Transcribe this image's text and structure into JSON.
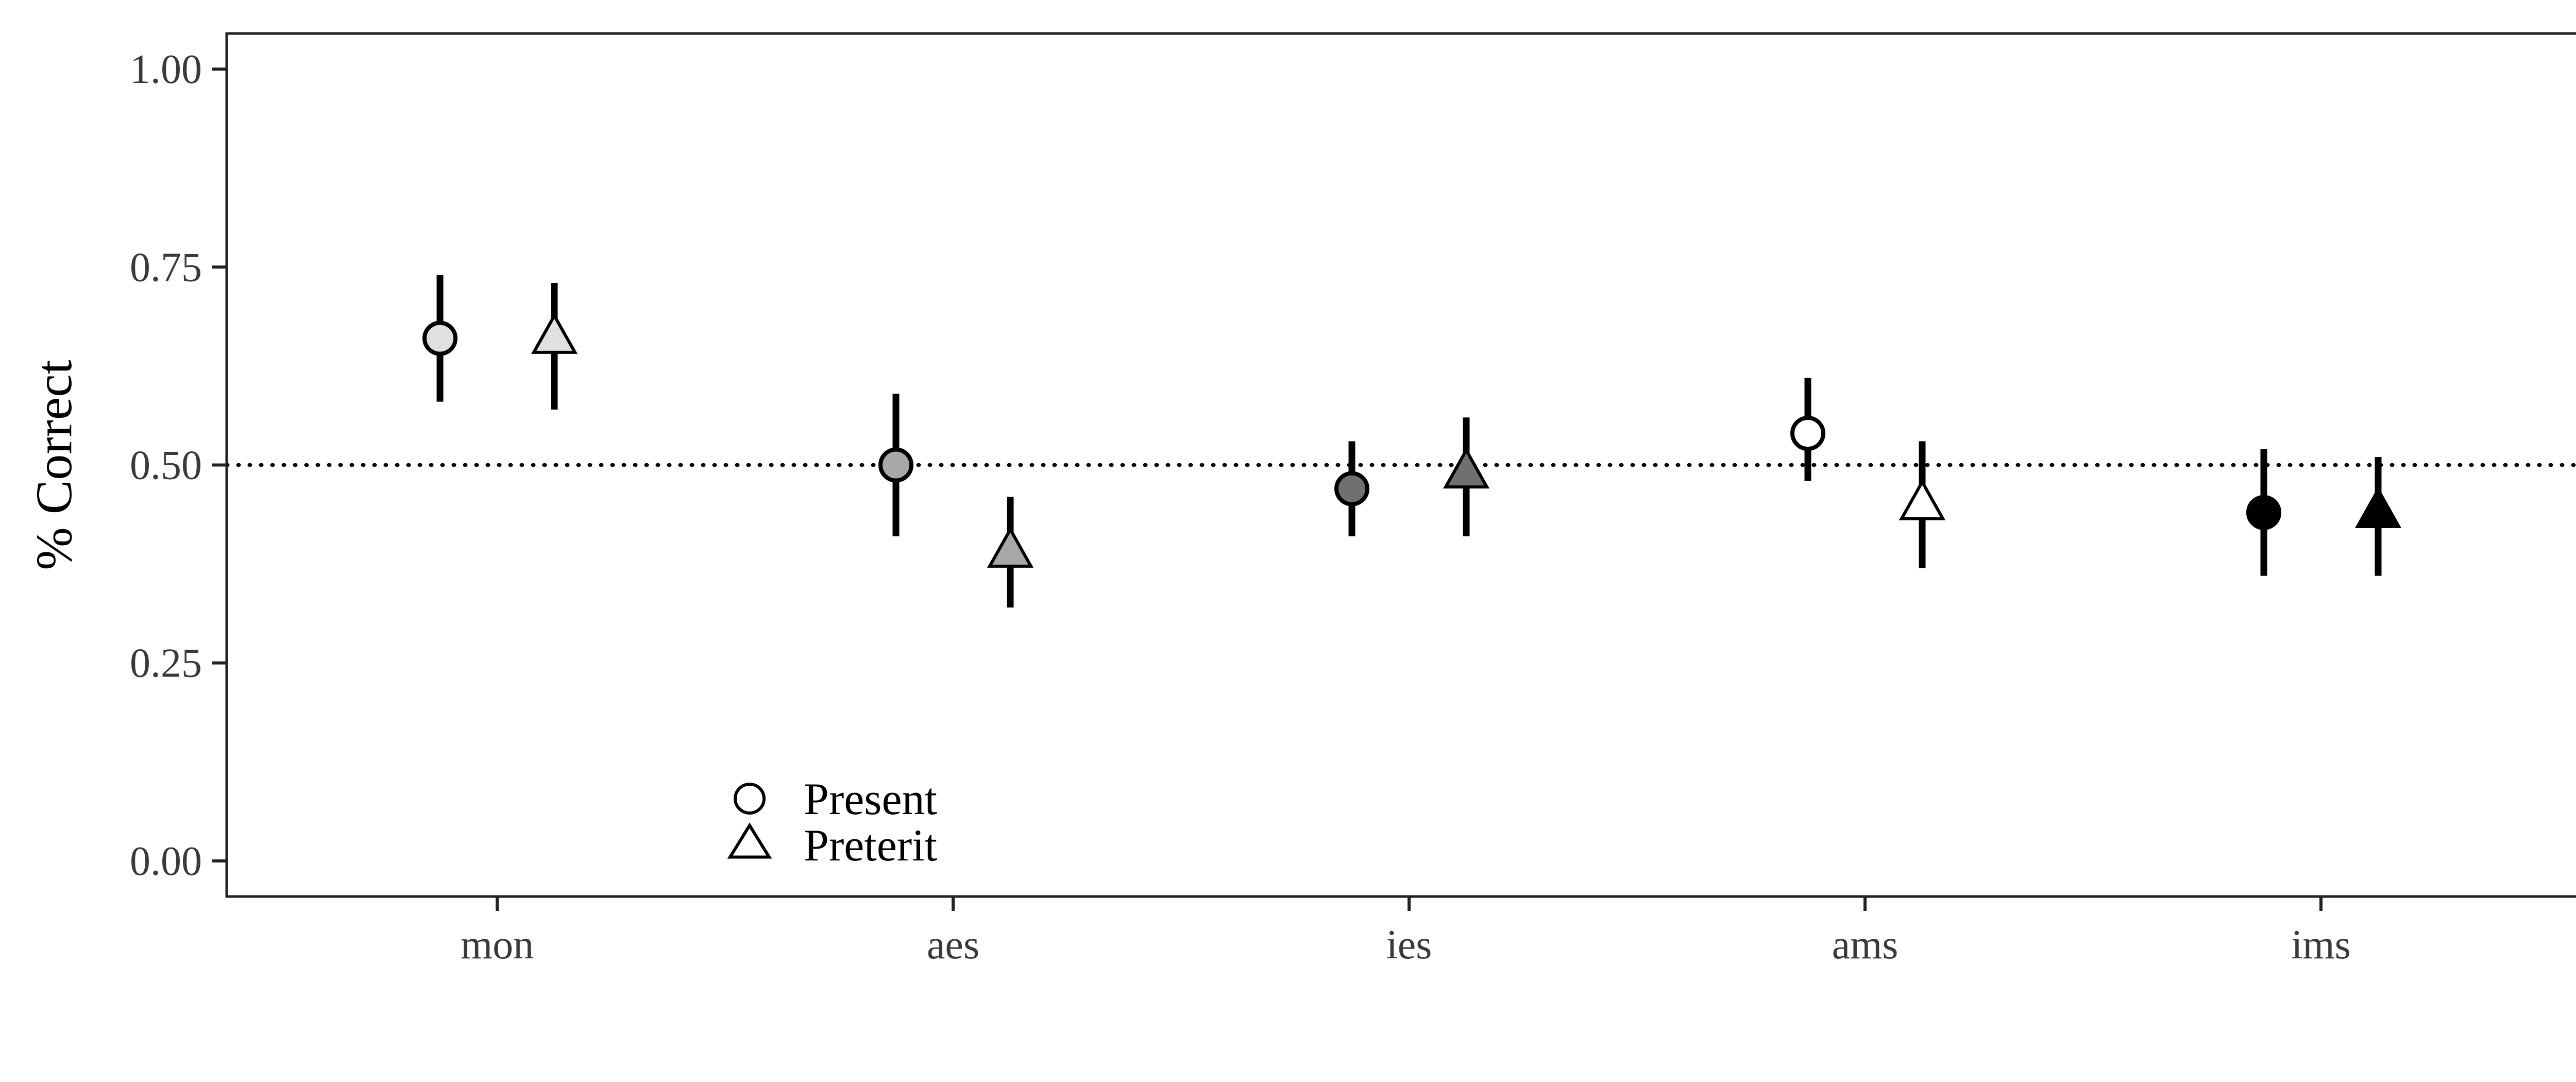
{
  "chart_data": {
    "type": "scatter",
    "ylabel": "% Correct",
    "xlabel": "",
    "categories": [
      "mon",
      "aes",
      "ies",
      "ams",
      "ims"
    ],
    "ylim": [
      -0.045,
      1.045
    ],
    "yticks": [
      0.0,
      0.25,
      0.5,
      0.75,
      1.0
    ],
    "ytick_labels": [
      "0.00",
      "0.25",
      "0.50",
      "0.75",
      "1.00"
    ],
    "reference_line": {
      "y": 0.5,
      "style": "dotted"
    },
    "grid": false,
    "legend_position": "bottom-left",
    "series": [
      {
        "name": "Present",
        "marker": "circle",
        "values": [
          0.66,
          0.5,
          0.47,
          0.54,
          0.44
        ],
        "lower": [
          0.58,
          0.41,
          0.41,
          0.48,
          0.36
        ],
        "upper": [
          0.74,
          0.59,
          0.53,
          0.61,
          0.52
        ]
      },
      {
        "name": "Preterit",
        "marker": "triangle",
        "values": [
          0.66,
          0.39,
          0.49,
          0.45,
          0.44
        ],
        "lower": [
          0.57,
          0.32,
          0.41,
          0.37,
          0.36
        ],
        "upper": [
          0.73,
          0.46,
          0.56,
          0.53,
          0.51
        ]
      }
    ],
    "category_fill_colors": [
      "#e0e0e0",
      "#a8a8a8",
      "#707070",
      "#ffffff",
      "#000000"
    ]
  }
}
